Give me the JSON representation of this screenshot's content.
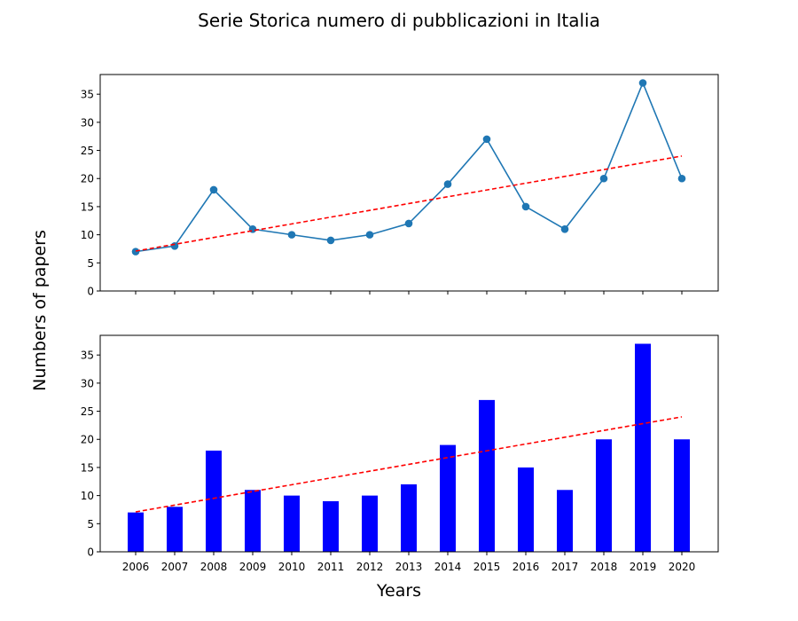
{
  "figure": {
    "title": "Serie Storica numero di pubblicazioni in Italia",
    "shared_ylabel": "Numbers of papers",
    "shared_xlabel": "Years"
  },
  "chart_data": [
    {
      "type": "line",
      "x": [
        2006,
        2007,
        2008,
        2009,
        2010,
        2011,
        2012,
        2013,
        2014,
        2015,
        2016,
        2017,
        2018,
        2019,
        2020
      ],
      "values": [
        7,
        8,
        18,
        11,
        10,
        9,
        10,
        12,
        19,
        27,
        15,
        11,
        20,
        37,
        20
      ],
      "trend": {
        "start": [
          2006,
          7.1
        ],
        "end": [
          2020,
          24
        ]
      },
      "ylim": [
        0,
        38.5
      ],
      "yticks": [
        0,
        5,
        10,
        15,
        20,
        25,
        30,
        35
      ],
      "x_ticklabels_shown": false,
      "grid": false,
      "colors": {
        "series": "#1f77b4",
        "trend": "#ff0000"
      }
    },
    {
      "type": "bar",
      "categories": [
        "2006",
        "2007",
        "2008",
        "2009",
        "2010",
        "2011",
        "2012",
        "2013",
        "2014",
        "2015",
        "2016",
        "2017",
        "2018",
        "2019",
        "2020"
      ],
      "values": [
        7,
        8,
        18,
        11,
        10,
        9,
        10,
        12,
        19,
        27,
        15,
        11,
        20,
        37,
        20
      ],
      "trend": {
        "start": [
          2006,
          7.1
        ],
        "end": [
          2020,
          24
        ]
      },
      "ylim": [
        0,
        38.5
      ],
      "yticks": [
        0,
        5,
        10,
        15,
        20,
        25,
        30,
        35
      ],
      "x_ticklabels_shown": true,
      "grid": false,
      "colors": {
        "bars": "#0000ff",
        "trend": "#ff0000"
      }
    }
  ]
}
